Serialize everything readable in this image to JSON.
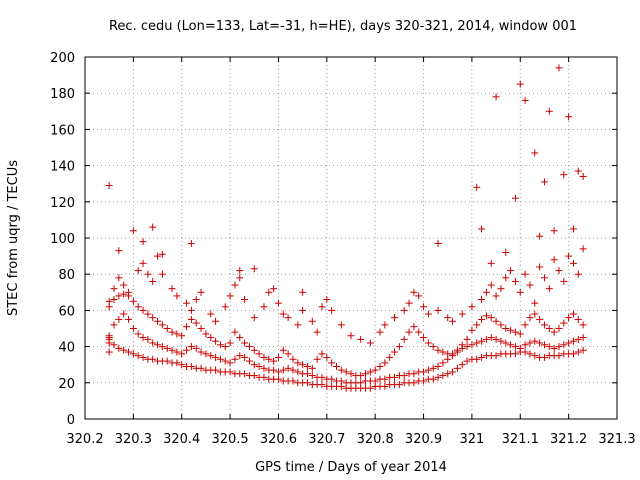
{
  "chart_data": {
    "type": "scatter",
    "title": "Rec. cedu (Lon=133, Lat=-31, h=HE), days 320-321, 2014, window 001",
    "xlabel": "GPS time / Days of year 2014",
    "ylabel": "STEC from uqrg / TECUs",
    "xlim": [
      320.2,
      321.3
    ],
    "ylim": [
      0,
      200
    ],
    "xticks": [
      "320.2",
      "320.3",
      "320.4",
      "320.5",
      "320.6",
      "320.7",
      "320.8",
      "320.9",
      "321",
      "321.1",
      "321.2",
      "321.3"
    ],
    "yticks": [
      "0",
      "20",
      "40",
      "60",
      "80",
      "100",
      "120",
      "140",
      "160",
      "180",
      "200"
    ],
    "grid": true,
    "marker": "+",
    "color": "#cc0000",
    "series": [
      {
        "x": [
          320.25,
          320.25,
          320.25,
          320.25,
          320.26,
          320.27,
          320.28,
          320.29,
          320.3,
          320.31,
          320.32,
          320.33,
          320.34,
          320.35,
          320.36,
          320.37,
          320.38,
          320.39,
          320.4,
          320.41,
          320.42,
          320.43,
          320.44,
          320.45,
          320.46,
          320.47,
          320.48,
          320.49,
          320.5,
          320.51,
          320.52,
          320.53,
          320.54,
          320.55,
          320.56,
          320.57,
          320.58,
          320.59,
          320.6,
          320.61,
          320.62,
          320.63,
          320.64,
          320.65,
          320.66,
          320.67,
          320.68,
          320.69,
          320.7,
          320.71,
          320.72,
          320.73,
          320.74,
          320.75,
          320.76,
          320.77,
          320.78,
          320.79,
          320.8,
          320.81,
          320.82,
          320.83,
          320.84,
          320.85,
          320.86,
          320.87,
          320.88,
          320.89,
          320.9,
          320.91,
          320.92,
          320.93,
          320.94,
          320.95,
          320.96,
          320.97,
          320.98,
          320.99,
          321.0,
          321.01,
          321.02,
          321.03,
          321.04,
          321.05,
          321.06,
          321.07,
          321.08,
          321.09,
          321.1,
          321.11,
          321.12,
          321.13,
          321.14,
          321.15,
          321.16,
          321.17,
          321.18,
          321.19,
          321.2,
          321.21,
          321.22,
          321.23
        ],
        "y": [
          37,
          42,
          45,
          44,
          41,
          39,
          38,
          37,
          36,
          35,
          34,
          33,
          33,
          32,
          32,
          32,
          31,
          31,
          30,
          29,
          29,
          28,
          28,
          27,
          27,
          27,
          26,
          26,
          26,
          25,
          25,
          25,
          24,
          24,
          23,
          23,
          22,
          22,
          22,
          21,
          21,
          21,
          20,
          20,
          20,
          19,
          19,
          19,
          18,
          18,
          18,
          18,
          17,
          17,
          17,
          17,
          17,
          17,
          18,
          18,
          18,
          19,
          19,
          19,
          20,
          20,
          20,
          21,
          21,
          22,
          22,
          23,
          24,
          25,
          26,
          28,
          30,
          32,
          33,
          33,
          34,
          35,
          35,
          35,
          36,
          36,
          36,
          36,
          37,
          37,
          36,
          35,
          34,
          34,
          35,
          35,
          35,
          36,
          36,
          36,
          37,
          38
        ]
      },
      {
        "x": [
          320.25,
          320.26,
          320.27,
          320.28,
          320.29,
          320.3,
          320.31,
          320.32,
          320.33,
          320.34,
          320.35,
          320.36,
          320.37,
          320.38,
          320.39,
          320.4,
          320.41,
          320.42,
          320.43,
          320.44,
          320.45,
          320.46,
          320.47,
          320.48,
          320.49,
          320.5,
          320.51,
          320.52,
          320.53,
          320.54,
          320.55,
          320.56,
          320.57,
          320.58,
          320.59,
          320.6,
          320.61,
          320.62,
          320.63,
          320.64,
          320.65,
          320.66,
          320.67,
          320.68,
          320.69,
          320.7,
          320.71,
          320.72,
          320.73,
          320.74,
          320.75,
          320.76,
          320.77,
          320.78,
          320.79,
          320.8,
          320.81,
          320.82,
          320.83,
          320.84,
          320.85,
          320.86,
          320.87,
          320.88,
          320.89,
          320.9,
          320.91,
          320.92,
          320.93,
          320.94,
          320.95,
          320.96,
          320.97,
          320.98,
          320.99,
          321.0,
          321.01,
          321.02,
          321.03,
          321.04,
          321.05,
          321.06,
          321.07,
          321.08,
          321.09,
          321.1,
          321.11,
          321.12,
          321.13,
          321.14,
          321.15,
          321.16,
          321.17,
          321.18,
          321.19,
          321.2,
          321.21,
          321.22,
          321.23
        ],
        "y": [
          46,
          52,
          55,
          58,
          55,
          50,
          47,
          45,
          44,
          42,
          41,
          40,
          39,
          38,
          37,
          36,
          38,
          40,
          39,
          37,
          36,
          35,
          34,
          33,
          32,
          31,
          33,
          35,
          34,
          32,
          30,
          29,
          28,
          27,
          27,
          26,
          27,
          28,
          27,
          26,
          25,
          25,
          24,
          23,
          23,
          22,
          22,
          21,
          21,
          20,
          20,
          20,
          20,
          21,
          21,
          21,
          22,
          22,
          23,
          23,
          24,
          24,
          25,
          25,
          26,
          26,
          27,
          28,
          29,
          31,
          33,
          35,
          37,
          39,
          40,
          41,
          42,
          43,
          44,
          45,
          44,
          43,
          42,
          41,
          40,
          39,
          41,
          42,
          43,
          42,
          41,
          40,
          39,
          40,
          41,
          42,
          43,
          44,
          45
        ]
      },
      {
        "x": [
          320.25,
          320.26,
          320.27,
          320.28,
          320.29,
          320.3,
          320.31,
          320.32,
          320.33,
          320.34,
          320.35,
          320.36,
          320.37,
          320.38,
          320.39,
          320.4,
          320.41,
          320.42,
          320.43,
          320.44,
          320.45,
          320.46,
          320.47,
          320.48,
          320.49,
          320.5,
          320.51,
          320.52,
          320.53,
          320.54,
          320.55,
          320.56,
          320.57,
          320.58,
          320.59,
          320.6,
          320.61,
          320.62,
          320.63,
          320.64,
          320.65,
          320.66,
          320.67,
          320.68,
          320.69,
          320.7,
          320.71,
          320.72,
          320.73,
          320.74,
          320.75,
          320.76,
          320.77,
          320.78,
          320.79,
          320.8,
          320.81,
          320.82,
          320.83,
          320.84,
          320.85,
          320.86,
          320.87,
          320.88,
          320.89,
          320.9,
          320.91,
          320.92,
          320.93,
          320.94,
          320.95,
          320.96,
          320.97,
          320.98,
          320.99,
          321.0,
          321.01,
          321.02,
          321.03,
          321.04,
          321.05,
          321.06,
          321.07,
          321.08,
          321.09,
          321.1,
          321.11,
          321.12,
          321.13,
          321.14,
          321.15,
          321.16,
          321.17,
          321.18,
          321.19,
          321.2,
          321.21,
          321.22,
          321.23
        ],
        "y": [
          62,
          66,
          68,
          69,
          68,
          65,
          62,
          60,
          58,
          56,
          54,
          52,
          50,
          48,
          47,
          46,
          51,
          55,
          53,
          50,
          47,
          45,
          43,
          41,
          40,
          42,
          48,
          45,
          42,
          40,
          38,
          36,
          34,
          33,
          32,
          34,
          38,
          36,
          33,
          31,
          30,
          29,
          28,
          33,
          36,
          34,
          31,
          29,
          27,
          26,
          25,
          24,
          24,
          25,
          26,
          27,
          29,
          31,
          34,
          37,
          40,
          44,
          48,
          51,
          48,
          45,
          42,
          40,
          38,
          37,
          36,
          36,
          38,
          41,
          44,
          49,
          52,
          55,
          57,
          56,
          54,
          52,
          50,
          49,
          48,
          47,
          52,
          56,
          58,
          55,
          52,
          50,
          48,
          50,
          53,
          56,
          58,
          55,
          52
        ]
      },
      {
        "x": [
          320.25,
          320.26,
          320.27,
          320.28,
          320.29,
          320.31,
          320.32,
          320.33,
          320.34,
          320.35,
          320.36,
          320.38,
          320.39,
          320.41,
          320.42,
          320.43,
          320.44,
          320.46,
          320.47,
          320.49,
          320.5,
          320.51,
          320.52,
          320.53,
          320.55,
          320.57,
          320.58,
          320.6,
          320.61,
          320.62,
          320.64,
          320.65,
          320.67,
          320.68,
          320.69,
          320.71,
          320.73,
          320.75,
          320.77,
          320.79,
          320.81,
          320.82,
          320.84,
          320.86,
          320.87,
          320.88,
          320.89,
          320.9,
          320.91,
          320.93,
          320.95,
          320.96,
          320.98,
          321.0,
          321.02,
          321.03,
          321.04,
          321.05,
          321.06,
          321.07,
          321.08,
          321.09,
          321.1,
          321.11,
          321.12,
          321.13,
          321.14,
          321.15,
          321.16,
          321.17,
          321.18,
          321.19,
          321.2,
          321.21,
          321.22,
          321.23
        ],
        "y": [
          65,
          72,
          78,
          74,
          70,
          82,
          86,
          80,
          76,
          90,
          80,
          72,
          68,
          64,
          60,
          66,
          70,
          58,
          54,
          62,
          68,
          74,
          78,
          66,
          56,
          62,
          70,
          64,
          58,
          56,
          52,
          60,
          54,
          48,
          62,
          60,
          52,
          46,
          44,
          42,
          48,
          52,
          56,
          60,
          64,
          70,
          68,
          62,
          58,
          60,
          56,
          54,
          58,
          62,
          66,
          70,
          74,
          68,
          72,
          78,
          82,
          76,
          70,
          80,
          74,
          64,
          84,
          78,
          72,
          88,
          82,
          76,
          90,
          86,
          80,
          94
        ]
      },
      {
        "x": [
          320.25,
          320.27,
          320.3,
          320.32,
          320.34,
          320.36,
          320.42,
          320.52,
          320.55,
          320.59,
          320.65,
          320.7,
          320.93,
          321.01,
          321.02,
          321.04,
          321.05,
          321.07,
          321.09,
          321.1,
          321.11,
          321.13,
          321.14,
          321.15,
          321.16,
          321.17,
          321.18,
          321.19,
          321.2,
          321.21,
          321.22,
          321.23
        ],
        "y": [
          129,
          93,
          104,
          98,
          106,
          91,
          97,
          82,
          83,
          72,
          70,
          66,
          97,
          128,
          105,
          86,
          178,
          92,
          122,
          185,
          176,
          147,
          101,
          131,
          170,
          104,
          194,
          135,
          167,
          105,
          137,
          134
        ]
      }
    ]
  }
}
